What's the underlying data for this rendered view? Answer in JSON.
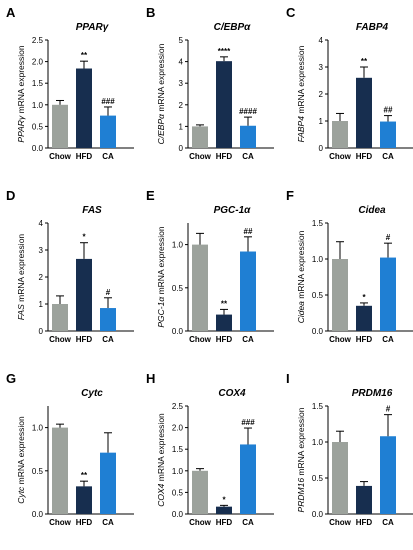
{
  "colors": {
    "Chow": "#9ca29c",
    "HFD": "#172e4f",
    "CA": "#1f7fd3"
  },
  "chart_data": [
    {
      "type": "bar",
      "panel": "A",
      "title": "PPARγ",
      "ylabel_gene": "PPARγ",
      "ylabel_rest": " mRNA expression",
      "categories": [
        "Chow",
        "HFD",
        "CA"
      ],
      "values": [
        1.0,
        1.84,
        0.75
      ],
      "errors": [
        0.1,
        0.17,
        0.2
      ],
      "significance": [
        "",
        "**",
        "###"
      ],
      "ylim": [
        0,
        2.5
      ],
      "yticks": [
        "0.0",
        "0.5",
        "1.0",
        "1.5",
        "2.0",
        "2.5"
      ]
    },
    {
      "type": "bar",
      "panel": "B",
      "title": "C/EBPα",
      "ylabel_gene": "C/EBPα",
      "ylabel_rest": " mRNA expression",
      "categories": [
        "Chow",
        "HFD",
        "CA"
      ],
      "values": [
        1.0,
        4.02,
        1.03
      ],
      "errors": [
        0.07,
        0.2,
        0.4
      ],
      "significance": [
        "",
        "****",
        "####"
      ],
      "ylim": [
        0,
        5
      ],
      "yticks": [
        "0",
        "1",
        "2",
        "3",
        "4",
        "5"
      ]
    },
    {
      "type": "bar",
      "panel": "C",
      "title": "FABP4",
      "ylabel_gene": "FABP4",
      "ylabel_rest": " mRNA expression",
      "categories": [
        "Chow",
        "HFD",
        "CA"
      ],
      "values": [
        1.0,
        2.6,
        0.98
      ],
      "errors": [
        0.28,
        0.4,
        0.22
      ],
      "significance": [
        "",
        "**",
        "##"
      ],
      "ylim": [
        0,
        4
      ],
      "yticks": [
        "0",
        "1",
        "2",
        "3",
        "4"
      ]
    },
    {
      "type": "bar",
      "panel": "D",
      "title": "FAS",
      "ylabel_gene": "FAS",
      "ylabel_rest": " mRNA expression",
      "categories": [
        "Chow",
        "HFD",
        "CA"
      ],
      "values": [
        1.0,
        2.67,
        0.85
      ],
      "errors": [
        0.3,
        0.6,
        0.38
      ],
      "significance": [
        "",
        "*",
        "#"
      ],
      "ylim": [
        0,
        4
      ],
      "yticks": [
        "0",
        "1",
        "2",
        "3",
        "4"
      ]
    },
    {
      "type": "bar",
      "panel": "E",
      "title": "PGC-1α",
      "ylabel_gene": "PGC-1α",
      "ylabel_rest": " mRNA expression",
      "categories": [
        "Chow",
        "HFD",
        "CA"
      ],
      "values": [
        1.0,
        0.19,
        0.92
      ],
      "errors": [
        0.13,
        0.06,
        0.17
      ],
      "significance": [
        "",
        "**",
        "##"
      ],
      "ylim": [
        0,
        1.25
      ],
      "yticks": [
        "0.0",
        "0.5",
        "1.0"
      ]
    },
    {
      "type": "bar",
      "panel": "F",
      "title": "Cidea",
      "ylabel_gene": "Cidea",
      "ylabel_rest": " mRNA expression",
      "categories": [
        "Chow",
        "HFD",
        "CA"
      ],
      "values": [
        1.0,
        0.35,
        1.02
      ],
      "errors": [
        0.24,
        0.04,
        0.2
      ],
      "significance": [
        "",
        "*",
        "#"
      ],
      "ylim": [
        0,
        1.5
      ],
      "yticks": [
        "0.0",
        "0.5",
        "1.0",
        "1.5"
      ]
    },
    {
      "type": "bar",
      "panel": "G",
      "title": "Cytc",
      "ylabel_gene": "Cytc",
      "ylabel_rest": " mRNA expression",
      "categories": [
        "Chow",
        "HFD",
        "CA"
      ],
      "values": [
        1.0,
        0.32,
        0.71
      ],
      "errors": [
        0.04,
        0.06,
        0.23
      ],
      "significance": [
        "",
        "**",
        ""
      ],
      "ylim": [
        0,
        1.25
      ],
      "yticks": [
        "0.0",
        "0.5",
        "1.0"
      ]
    },
    {
      "type": "bar",
      "panel": "H",
      "title": "COX4",
      "ylabel_gene": "COX4",
      "ylabel_rest": " mRNA expression",
      "categories": [
        "Chow",
        "HFD",
        "CA"
      ],
      "values": [
        1.0,
        0.17,
        1.61
      ],
      "errors": [
        0.05,
        0.03,
        0.38
      ],
      "significance": [
        "",
        "*",
        "###"
      ],
      "ylim": [
        0,
        2.5
      ],
      "yticks": [
        "0.0",
        "0.5",
        "1.0",
        "1.5",
        "2.0",
        "2.5"
      ]
    },
    {
      "type": "bar",
      "panel": "I",
      "title": "PRDM16",
      "ylabel_gene": "PRDM16",
      "ylabel_rest": " mRNA expression",
      "categories": [
        "Chow",
        "HFD",
        "CA"
      ],
      "values": [
        1.0,
        0.39,
        1.08
      ],
      "errors": [
        0.15,
        0.06,
        0.3
      ],
      "significance": [
        "",
        "",
        "#"
      ],
      "ylim": [
        0,
        1.5
      ],
      "yticks": [
        "0.0",
        "0.5",
        "1.0",
        "1.5"
      ]
    }
  ]
}
